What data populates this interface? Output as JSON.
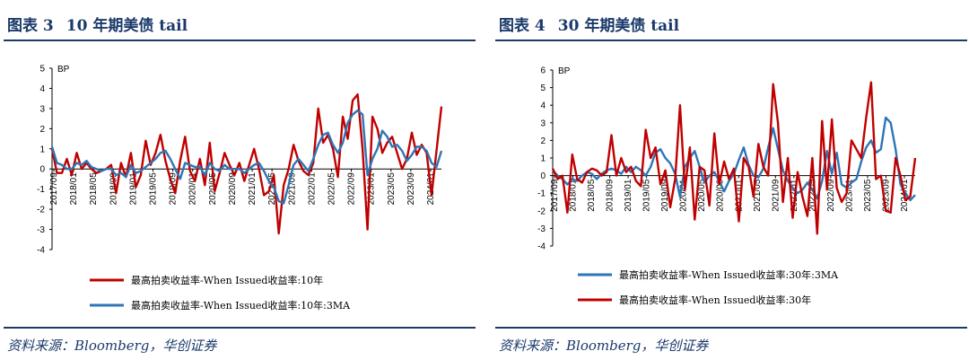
{
  "panels": [
    {
      "fig_num": "图表 3",
      "fig_title": "10 年期美债 tail",
      "source": "资料来源：Bloomberg，华创证券"
    },
    {
      "fig_num": "图表 4",
      "fig_title": "30 年期美债 tail",
      "source": "资料来源：Bloomberg，华创证券"
    }
  ],
  "chart_data": [
    {
      "type": "line",
      "ylabel": "BP",
      "ylim": [
        -4,
        5
      ],
      "yticks": [
        -4,
        -3,
        -2,
        -1,
        0,
        1,
        2,
        3,
        4,
        5
      ],
      "xticks": [
        "2017/09",
        "2018/01",
        "2018/05",
        "2018/09",
        "2019/01",
        "2019/05",
        "2019/09",
        "2020/01",
        "2020/05",
        "2020/09",
        "2021/01",
        "2021/05",
        "2021/09",
        "2022/01",
        "2022/05",
        "2022/09",
        "2023/01",
        "2023/05",
        "2023/09",
        "2024/01"
      ],
      "legend_position": "bottom",
      "series": [
        {
          "name": "最高拍卖收益率-When Issued收益率:10年",
          "color": "#c00000",
          "values": [
            1.0,
            -0.2,
            -0.2,
            0.5,
            -0.3,
            0.8,
            0.0,
            0.3,
            0.0,
            -0.2,
            -0.1,
            0.0,
            0.2,
            -1.2,
            0.3,
            -0.4,
            0.8,
            -0.9,
            -0.3,
            1.4,
            0.2,
            0.8,
            1.7,
            0.4,
            -0.5,
            -1.2,
            0.4,
            1.6,
            -0.1,
            -0.6,
            0.5,
            -0.8,
            1.3,
            -1.1,
            -0.2,
            0.8,
            0.2,
            -0.3,
            0.3,
            -0.6,
            0.2,
            1.0,
            0.0,
            -1.3,
            -1.1,
            -0.3,
            -3.2,
            -0.8,
            0.0,
            1.2,
            0.4,
            -0.1,
            -0.3,
            0.3,
            3.0,
            1.3,
            1.7,
            1.0,
            -0.4,
            2.6,
            1.5,
            3.4,
            3.7,
            1.0,
            -3.0,
            2.6,
            2.0,
            0.8,
            1.3,
            1.6,
            0.8,
            0.0,
            0.5,
            1.8,
            0.7,
            1.2,
            0.8,
            -1.3,
            0.9,
            3.1
          ]
        },
        {
          "name": "最高拍卖收益率-When Issued收益率:10年:3MA",
          "color": "#2e75b6",
          "values": [
            1.1,
            0.3,
            0.2,
            0.0,
            0.0,
            0.3,
            0.2,
            0.4,
            0.1,
            0.0,
            -0.1,
            0.0,
            0.0,
            -0.3,
            -0.2,
            -0.4,
            0.2,
            -0.2,
            -0.1,
            0.1,
            0.3,
            0.5,
            0.8,
            0.9,
            0.5,
            0.0,
            -0.5,
            0.3,
            0.2,
            0.1,
            0.1,
            -0.3,
            0.3,
            0.0,
            -0.1,
            0.2,
            0.0,
            0.0,
            0.0,
            -0.2,
            0.0,
            0.2,
            0.3,
            -0.1,
            -0.6,
            -0.9,
            -1.6,
            -1.7,
            -0.8,
            0.2,
            0.5,
            0.2,
            -0.1,
            0.5,
            1.2,
            1.7,
            1.8,
            1.2,
            0.8,
            1.3,
            2.3,
            2.7,
            2.9,
            2.7,
            -0.3,
            0.5,
            1.0,
            1.9,
            1.6,
            1.1,
            1.2,
            0.9,
            0.4,
            0.7,
            1.1,
            1.1,
            0.9,
            0.3,
            0.1,
            0.9
          ]
        }
      ]
    },
    {
      "type": "line",
      "ylabel": "BP",
      "ylim": [
        -4,
        6
      ],
      "yticks": [
        -4,
        -3,
        -2,
        -1,
        0,
        1,
        2,
        3,
        4,
        5,
        6
      ],
      "xticks": [
        "2017/09",
        "2018/01",
        "2018/05",
        "2018/09",
        "2019/01",
        "2019/05",
        "2019/09",
        "2020/01",
        "2020/05",
        "2020/09",
        "2021/01",
        "2021/05",
        "2021/09",
        "2022/01",
        "2022/05",
        "2022/09",
        "2023/01",
        "2023/05",
        "2023/09",
        "2024/01"
      ],
      "legend_position": "bottom",
      "series": [
        {
          "name": "最高拍卖收益率-When Issued收益率:30年:3MA",
          "color": "#2e75b6",
          "values": [
            0.3,
            0.0,
            -0.2,
            -0.5,
            -0.2,
            -0.3,
            0.0,
            0.2,
            0.1,
            -0.2,
            0.1,
            0.3,
            0.4,
            0.3,
            0.1,
            0.5,
            0.2,
            0.5,
            0.3,
            0.0,
            0.5,
            1.3,
            1.5,
            1.0,
            0.7,
            0.1,
            -1.2,
            0.5,
            1.0,
            1.4,
            0.5,
            -0.4,
            0.0,
            0.2,
            -0.3,
            -0.9,
            -0.3,
            0.1,
            0.9,
            1.6,
            0.6,
            0.0,
            -0.1,
            0.4,
            1.6,
            2.7,
            1.5,
            0.3,
            -0.3,
            -0.7,
            -1.0,
            -0.8,
            -0.4,
            -0.8,
            -1.3,
            -0.3,
            1.4,
            0.1,
            1.3,
            -0.5,
            -0.7,
            -0.4,
            -0.2,
            0.8,
            1.6,
            2.0,
            1.3,
            1.5,
            3.3,
            3.0,
            1.5,
            -0.5,
            -1.0,
            -1.4,
            -1.1
          ]
        },
        {
          "name": "最高拍卖收益率-When Issued收益率:30年",
          "color": "#c00000",
          "values": [
            0.4,
            -0.2,
            0.0,
            -2.1,
            1.2,
            -0.2,
            -0.4,
            0.2,
            0.4,
            0.3,
            0.0,
            0.2,
            2.3,
            0.0,
            1.0,
            0.2,
            0.5,
            -0.3,
            -0.6,
            2.6,
            1.0,
            1.6,
            -0.5,
            0.3,
            -1.8,
            -0.2,
            4.0,
            -0.8,
            1.6,
            -2.5,
            0.5,
            0.3,
            -1.7,
            2.4,
            -0.5,
            0.8,
            -0.2,
            0.4,
            -2.6,
            1.0,
            0.5,
            -1.2,
            1.8,
            0.5,
            0.0,
            5.2,
            3.0,
            -1.5,
            1.0,
            -2.4,
            0.2,
            -1.2,
            -2.3,
            1.0,
            -3.3,
            3.1,
            -0.8,
            3.2,
            -0.7,
            -1.5,
            -1.0,
            2.0,
            1.5,
            1.0,
            3.3,
            5.3,
            -0.2,
            0.0,
            -2.0,
            -2.1,
            1.0,
            0.0,
            -1.4,
            -1.2,
            1.0
          ]
        }
      ]
    }
  ]
}
